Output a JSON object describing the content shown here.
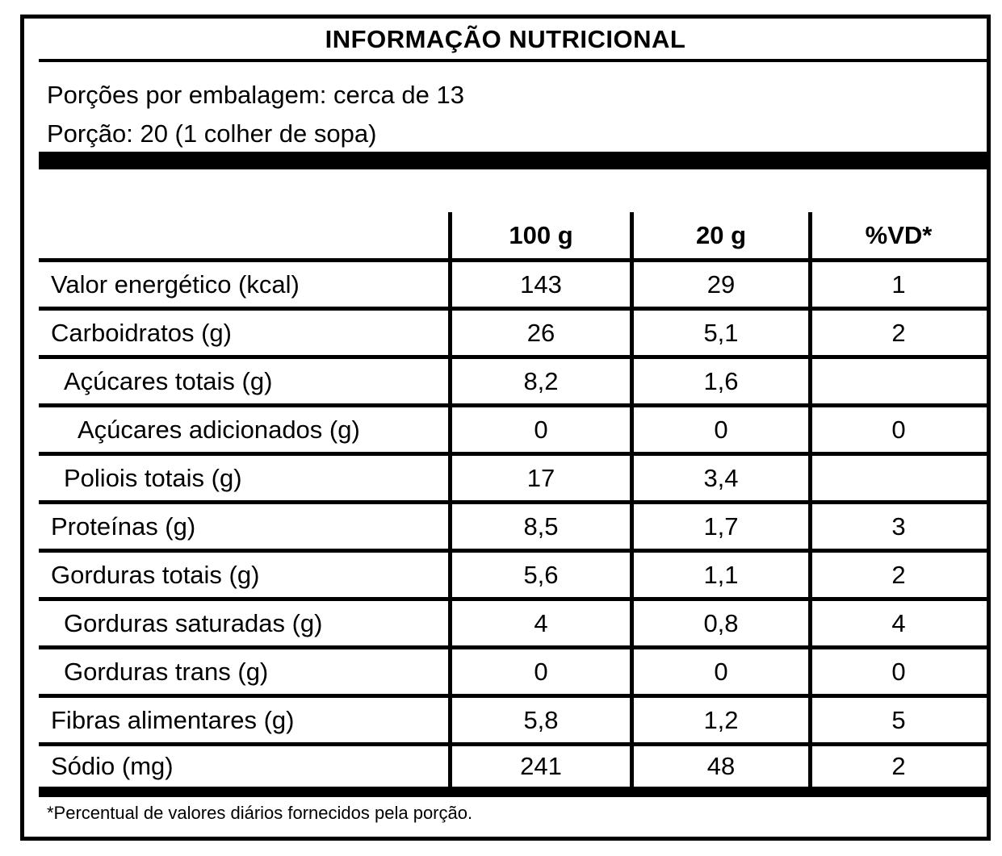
{
  "title": "INFORMAÇÃO NUTRICIONAL",
  "serving_info": {
    "servings_per_package": "Porções por embalagem: cerca de 13",
    "serving_size": "Porção: 20 (1 colher de sopa)"
  },
  "table": {
    "columns": [
      "100 g",
      "20 g",
      "%VD*"
    ],
    "rows": [
      {
        "label": "Valor energético (kcal)",
        "per100g": "143",
        "per20g": "29",
        "vd": "1"
      },
      {
        "label": "Carboidratos (g)",
        "per100g": "26",
        "per20g": "5,1",
        "vd": "2"
      },
      {
        "label": "Açúcares totais (g)",
        "per100g": "8,2",
        "per20g": "1,6",
        "vd": ""
      },
      {
        "label": "Açúcares adicionados (g)",
        "per100g": "0",
        "per20g": "0",
        "vd": "0"
      },
      {
        "label": "Poliois totais (g)",
        "per100g": "17",
        "per20g": "3,4",
        "vd": ""
      },
      {
        "label": "Proteínas (g)",
        "per100g": "8,5",
        "per20g": "1,7",
        "vd": "3"
      },
      {
        "label": "Gorduras totais (g)",
        "per100g": "5,6",
        "per20g": "1,1",
        "vd": "2"
      },
      {
        "label": "Gorduras saturadas (g)",
        "per100g": "4",
        "per20g": "0,8",
        "vd": "4"
      },
      {
        "label": "Gorduras trans (g)",
        "per100g": "0",
        "per20g": "0",
        "vd": "0"
      },
      {
        "label": "Fibras alimentares (g)",
        "per100g": "5,8",
        "per20g": "1,2",
        "vd": "5"
      },
      {
        "label": "Sódio (mg)",
        "per100g": "241",
        "per20g": "48",
        "vd": "2"
      }
    ]
  },
  "footnote": "*Percentual de valores diários fornecidos pela porção.",
  "colors": {
    "border": "#000000",
    "background": "#ffffff",
    "text": "#000000"
  }
}
